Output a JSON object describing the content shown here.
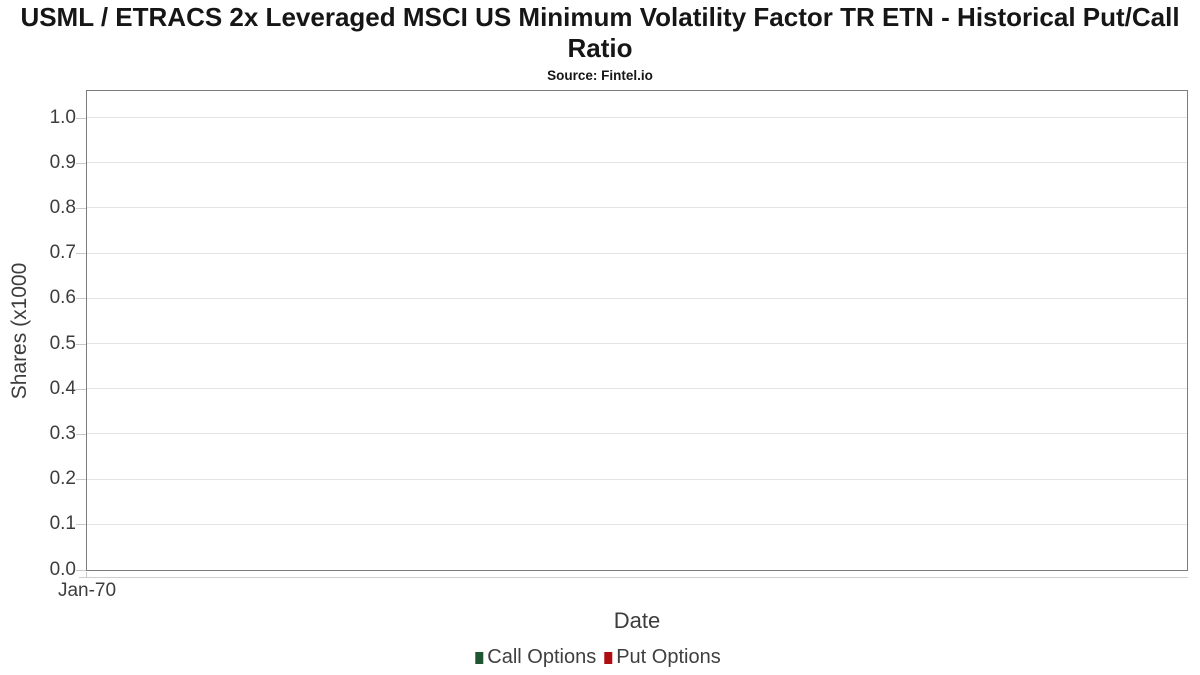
{
  "header": {
    "title": "USML / ETRACS 2x Leveraged MSCI US Minimum Volatility Factor TR ETN - Historical Put/Call Ratio",
    "subtitle": "Source: Fintel.io"
  },
  "chart_data": {
    "type": "line",
    "title": "USML / ETRACS 2x Leveraged MSCI US Minimum Volatility Factor TR ETN - Historical Put/Call Ratio",
    "subtitle": "Source: Fintel.io",
    "xlabel": "Date",
    "ylabel": "Shares (x1000",
    "x_ticks": [
      "Jan-70"
    ],
    "y_ticks": [
      0.0,
      0.1,
      0.2,
      0.3,
      0.4,
      0.5,
      0.6,
      0.7,
      0.8,
      0.9,
      1.0
    ],
    "ylim": [
      0,
      1.06
    ],
    "grid": true,
    "legend_position": "bottom",
    "series": [
      {
        "name": "Call Options",
        "color": "#1e5632",
        "x": [],
        "values": []
      },
      {
        "name": "Put Options",
        "color": "#b00d11",
        "x": [],
        "values": []
      }
    ],
    "colors": {
      "grid": "#e4e4e4",
      "plot_border": "#7c7c7c",
      "tick": "#c9c9c9",
      "axis_text": "#3d3d3d",
      "title_text": "#161616"
    }
  }
}
